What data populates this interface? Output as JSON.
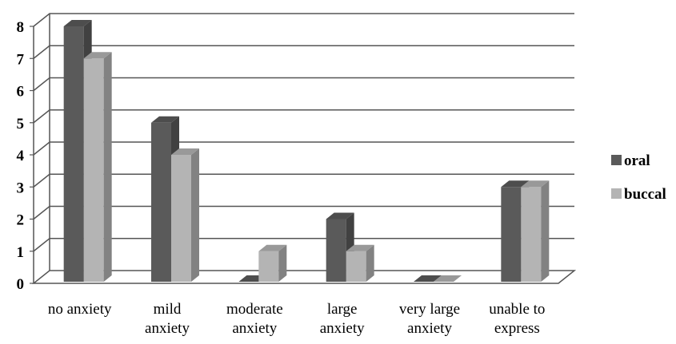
{
  "chart_data": {
    "type": "bar",
    "title": "",
    "xlabel": "",
    "ylabel": "",
    "ylim": [
      0,
      8
    ],
    "yticks": [
      "0",
      "1",
      "2",
      "3",
      "4",
      "5",
      "6",
      "7",
      "8"
    ],
    "grid": true,
    "style": "3d-clustered-column",
    "legend_position": "right",
    "categories": [
      [
        "no anxiety"
      ],
      [
        "mild",
        "anxiety"
      ],
      [
        "moderate",
        "anxiety"
      ],
      [
        "large",
        "anxiety"
      ],
      [
        "very large",
        "anxiety"
      ],
      [
        "unable to",
        "express"
      ]
    ],
    "series": [
      {
        "name": "oral",
        "color": "#5a5a5a",
        "values": [
          8,
          5,
          0,
          2,
          0,
          3
        ]
      },
      {
        "name": "buccal",
        "color": "#b4b4b4",
        "values": [
          7,
          4,
          1,
          1,
          0,
          3
        ]
      }
    ]
  }
}
